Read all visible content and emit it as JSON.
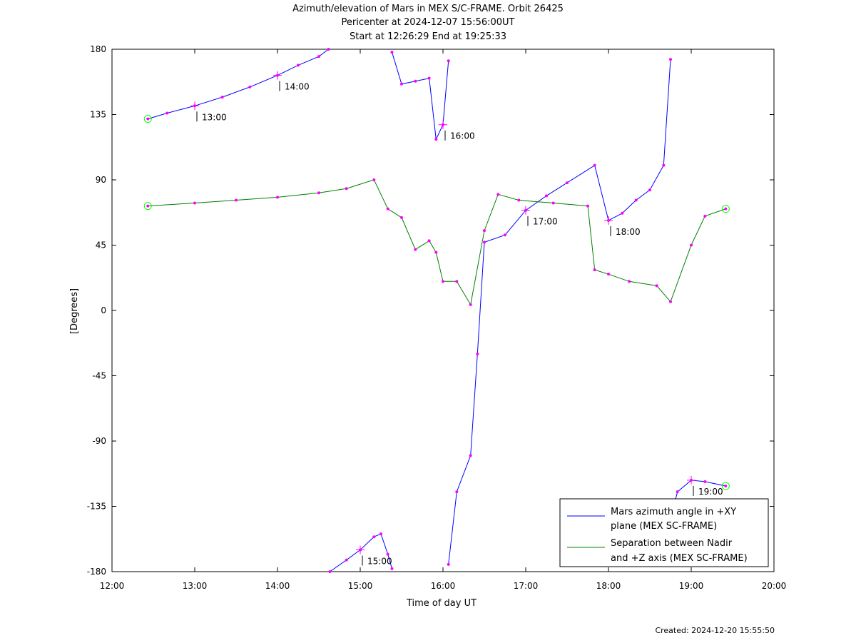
{
  "title_lines": [
    "Azimuth/elevation of Mars in MEX S/C-FRAME.  Orbit 26425",
    "Pericenter at 2024-12-07 15:56:00UT",
    "Start at 12:26:29 End at 19:25:33"
  ],
  "footer": {
    "created": "Created: 2024-12-20 15:55:50"
  },
  "chart_data": {
    "type": "line",
    "xlabel": "Time of day UT",
    "ylabel": "[Degrees]",
    "xlim": [
      "12:00",
      "20:00"
    ],
    "ylim": [
      -180,
      180
    ],
    "x_ticks": [
      "12:00",
      "13:00",
      "14:00",
      "15:00",
      "16:00",
      "17:00",
      "18:00",
      "19:00",
      "20:00"
    ],
    "y_ticks": [
      180,
      135,
      90,
      45,
      0,
      -45,
      -90,
      -135,
      -180
    ],
    "grid": false,
    "legend_position": "bottom-right",
    "series": [
      {
        "name": "Mars azimuth angle in +XY plane (MEX SC-FRAME)",
        "legend_lines": [
          "Mars azimuth angle in +XY",
          "plane (MEX SC-FRAME)"
        ],
        "color": "#0000ff",
        "segments": [
          [
            [
              "12:26",
              132
            ],
            [
              "12:40",
              136
            ],
            [
              "13:00",
              141
            ],
            [
              "13:20",
              147
            ],
            [
              "13:40",
              154
            ],
            [
              "14:00",
              162
            ],
            [
              "14:15",
              169
            ],
            [
              "14:30",
              175
            ],
            [
              "14:37",
              180
            ]
          ],
          [
            [
              "14:38",
              -180
            ],
            [
              "14:50",
              -172
            ],
            [
              "15:00",
              -165
            ],
            [
              "15:10",
              -156
            ],
            [
              "15:15",
              -154
            ],
            [
              "15:20",
              -168
            ],
            [
              "15:23",
              -178
            ]
          ],
          [
            [
              "15:23",
              178
            ],
            [
              "15:30",
              156
            ],
            [
              "15:40",
              158
            ],
            [
              "15:50",
              160
            ],
            [
              "15:55",
              118
            ],
            [
              "16:00",
              128
            ],
            [
              "16:04",
              172
            ]
          ],
          [
            [
              "16:04",
              -175
            ],
            [
              "16:10",
              -125
            ],
            [
              "16:20",
              -100
            ],
            [
              "16:25",
              -30
            ],
            [
              "16:30",
              47
            ],
            [
              "16:45",
              52
            ],
            [
              "17:00",
              69
            ],
            [
              "17:15",
              79
            ],
            [
              "17:30",
              88
            ],
            [
              "17:50",
              100
            ],
            [
              "18:00",
              62
            ],
            [
              "18:10",
              67
            ],
            [
              "18:20",
              76
            ],
            [
              "18:30",
              83
            ],
            [
              "18:40",
              100
            ],
            [
              "18:45",
              173
            ]
          ],
          [
            [
              "18:46",
              -140
            ],
            [
              "18:50",
              -125
            ],
            [
              "19:00",
              -117
            ],
            [
              "19:10",
              -118
            ],
            [
              "19:25",
              -121
            ]
          ]
        ]
      },
      {
        "name": "Separation between Nadir and +Z axis (MEX SC-FRAME)",
        "legend_lines": [
          "Separation between Nadir",
          "and +Z axis (MEX SC-FRAME)"
        ],
        "color": "#008000",
        "segments": [
          [
            [
              "12:26",
              72
            ],
            [
              "13:00",
              74
            ],
            [
              "13:30",
              76
            ],
            [
              "14:00",
              78
            ],
            [
              "14:30",
              81
            ],
            [
              "14:50",
              84
            ],
            [
              "15:10",
              90
            ],
            [
              "15:20",
              70
            ],
            [
              "15:30",
              64
            ],
            [
              "15:40",
              42
            ],
            [
              "15:50",
              48
            ],
            [
              "15:55",
              40
            ],
            [
              "16:00",
              20
            ],
            [
              "16:10",
              20
            ],
            [
              "16:20",
              4
            ],
            [
              "16:30",
              55
            ],
            [
              "16:40",
              80
            ],
            [
              "16:55",
              76
            ],
            [
              "17:20",
              74
            ],
            [
              "17:45",
              72
            ],
            [
              "17:50",
              28
            ],
            [
              "18:00",
              25
            ],
            [
              "18:15",
              20
            ],
            [
              "18:35",
              17
            ],
            [
              "18:45",
              6
            ],
            [
              "19:00",
              45
            ],
            [
              "19:10",
              65
            ],
            [
              "19:25",
              70
            ]
          ]
        ]
      }
    ],
    "marker_times": [
      "13:00",
      "14:00",
      "15:00",
      "16:00",
      "17:00",
      "18:00",
      "19:00"
    ],
    "marker_color": "#ff00ff",
    "start_end_marker_color": "#00ff00",
    "hour_annotations": [
      {
        "label": "13:00",
        "series": 0
      },
      {
        "label": "14:00",
        "series": 0
      },
      {
        "label": "15:00",
        "series": 0
      },
      {
        "label": "16:00",
        "series": 0
      },
      {
        "label": "17:00",
        "series": 0
      },
      {
        "label": "18:00",
        "series": 0
      },
      {
        "label": "19:00",
        "series": 0
      }
    ]
  }
}
